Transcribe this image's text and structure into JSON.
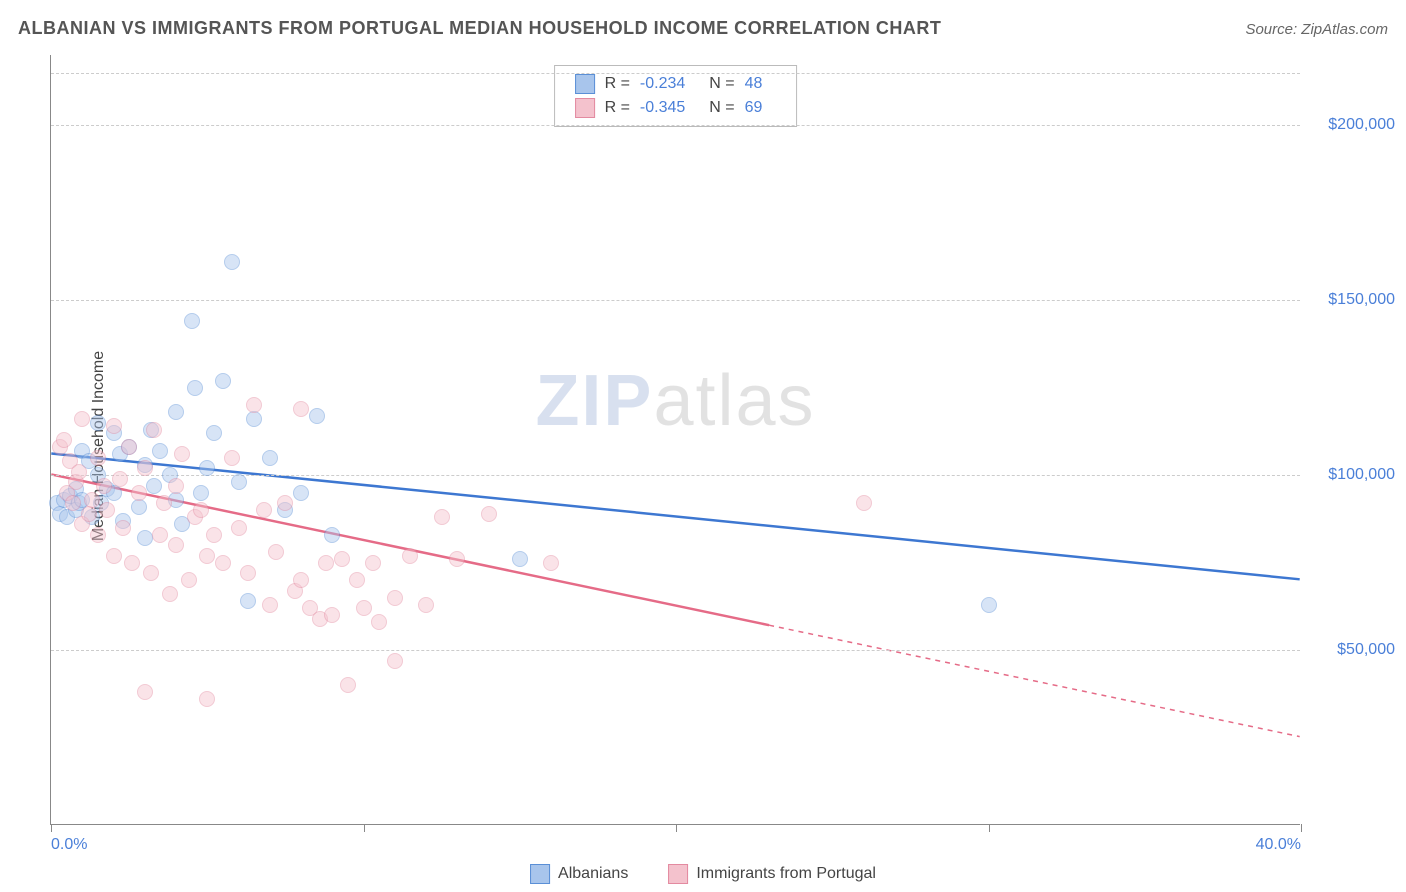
{
  "title": "ALBANIAN VS IMMIGRANTS FROM PORTUGAL MEDIAN HOUSEHOLD INCOME CORRELATION CHART",
  "source_label": "Source: ZipAtlas.com",
  "y_axis_label": "Median Household Income",
  "watermark_a": "ZIP",
  "watermark_b": "atlas",
  "chart": {
    "type": "scatter",
    "xlim": [
      0,
      40
    ],
    "ylim": [
      0,
      220000
    ],
    "x_ticks_pct": [
      0,
      10,
      20,
      30,
      40
    ],
    "x_tick_labels": {
      "0": "0.0%",
      "40": "40.0%"
    },
    "y_gridlines": [
      50000,
      100000,
      150000,
      200000,
      215000
    ],
    "y_tick_labels": {
      "50000": "$50,000",
      "100000": "$100,000",
      "150000": "$150,000",
      "200000": "$200,000"
    },
    "background_color": "#ffffff",
    "grid_color": "#cccccc",
    "axis_color": "#888888",
    "label_color": "#4a7fd8",
    "point_radius": 8,
    "point_opacity": 0.45
  },
  "series": [
    {
      "name": "Albanians",
      "fill": "#a8c5ec",
      "stroke": "#5a8fd6",
      "line_color": "#3d77d1",
      "r": "-0.234",
      "n": "48",
      "trend": {
        "x1": 0,
        "y1": 106000,
        "x2": 40,
        "y2": 70000,
        "dash_after_x": 40
      },
      "points": [
        [
          0.2,
          92000
        ],
        [
          0.3,
          89000
        ],
        [
          0.4,
          93000
        ],
        [
          0.5,
          88000
        ],
        [
          0.6,
          94000
        ],
        [
          0.8,
          96000
        ],
        [
          0.8,
          90000
        ],
        [
          0.9,
          92000
        ],
        [
          1.0,
          107000
        ],
        [
          1.0,
          93000
        ],
        [
          1.2,
          104000
        ],
        [
          1.3,
          88000
        ],
        [
          1.5,
          100000
        ],
        [
          1.5,
          115000
        ],
        [
          1.6,
          92000
        ],
        [
          1.8,
          96000
        ],
        [
          2.0,
          112000
        ],
        [
          2.0,
          95000
        ],
        [
          2.2,
          106000
        ],
        [
          2.3,
          87000
        ],
        [
          2.5,
          108000
        ],
        [
          2.8,
          91000
        ],
        [
          3.0,
          103000
        ],
        [
          3.0,
          82000
        ],
        [
          3.2,
          113000
        ],
        [
          3.3,
          97000
        ],
        [
          3.5,
          107000
        ],
        [
          3.8,
          100000
        ],
        [
          4.0,
          118000
        ],
        [
          4.0,
          93000
        ],
        [
          4.2,
          86000
        ],
        [
          4.5,
          144000
        ],
        [
          4.6,
          125000
        ],
        [
          4.8,
          95000
        ],
        [
          5.0,
          102000
        ],
        [
          5.2,
          112000
        ],
        [
          5.5,
          127000
        ],
        [
          5.8,
          161000
        ],
        [
          6.0,
          98000
        ],
        [
          6.3,
          64000
        ],
        [
          6.5,
          116000
        ],
        [
          7.0,
          105000
        ],
        [
          7.5,
          90000
        ],
        [
          8.0,
          95000
        ],
        [
          8.5,
          117000
        ],
        [
          9.0,
          83000
        ],
        [
          15.0,
          76000
        ],
        [
          30.0,
          63000
        ]
      ]
    },
    {
      "name": "Immigrants from Portugal",
      "fill": "#f4c2cd",
      "stroke": "#e38aa0",
      "line_color": "#e56b87",
      "r": "-0.345",
      "n": "69",
      "trend": {
        "x1": 0,
        "y1": 100000,
        "x2": 40,
        "y2": 25000,
        "dash_after_x": 23
      },
      "points": [
        [
          0.3,
          108000
        ],
        [
          0.4,
          110000
        ],
        [
          0.5,
          95000
        ],
        [
          0.6,
          104000
        ],
        [
          0.7,
          92000
        ],
        [
          0.8,
          98000
        ],
        [
          0.9,
          101000
        ],
        [
          1.0,
          86000
        ],
        [
          1.0,
          116000
        ],
        [
          1.2,
          89000
        ],
        [
          1.3,
          93000
        ],
        [
          1.5,
          83000
        ],
        [
          1.5,
          105000
        ],
        [
          1.7,
          97000
        ],
        [
          1.8,
          90000
        ],
        [
          2.0,
          114000
        ],
        [
          2.0,
          77000
        ],
        [
          2.2,
          99000
        ],
        [
          2.3,
          85000
        ],
        [
          2.5,
          108000
        ],
        [
          2.6,
          75000
        ],
        [
          2.8,
          95000
        ],
        [
          3.0,
          38000
        ],
        [
          3.0,
          102000
        ],
        [
          3.2,
          72000
        ],
        [
          3.3,
          113000
        ],
        [
          3.5,
          83000
        ],
        [
          3.6,
          92000
        ],
        [
          3.8,
          66000
        ],
        [
          4.0,
          97000
        ],
        [
          4.0,
          80000
        ],
        [
          4.2,
          106000
        ],
        [
          4.4,
          70000
        ],
        [
          4.6,
          88000
        ],
        [
          4.8,
          90000
        ],
        [
          5.0,
          77000
        ],
        [
          5.0,
          36000
        ],
        [
          5.2,
          83000
        ],
        [
          5.5,
          75000
        ],
        [
          5.8,
          105000
        ],
        [
          6.0,
          85000
        ],
        [
          6.3,
          72000
        ],
        [
          6.5,
          120000
        ],
        [
          6.8,
          90000
        ],
        [
          7.0,
          63000
        ],
        [
          7.2,
          78000
        ],
        [
          7.5,
          92000
        ],
        [
          7.8,
          67000
        ],
        [
          8.0,
          70000
        ],
        [
          8.0,
          119000
        ],
        [
          8.3,
          62000
        ],
        [
          8.6,
          59000
        ],
        [
          8.8,
          75000
        ],
        [
          9.0,
          60000
        ],
        [
          9.3,
          76000
        ],
        [
          9.5,
          40000
        ],
        [
          9.8,
          70000
        ],
        [
          10.0,
          62000
        ],
        [
          10.3,
          75000
        ],
        [
          10.5,
          58000
        ],
        [
          11.0,
          65000
        ],
        [
          11.0,
          47000
        ],
        [
          11.5,
          77000
        ],
        [
          12.0,
          63000
        ],
        [
          12.5,
          88000
        ],
        [
          13.0,
          76000
        ],
        [
          14.0,
          89000
        ],
        [
          16.0,
          75000
        ],
        [
          26.0,
          92000
        ]
      ]
    }
  ],
  "bottom_legend": [
    "Albanians",
    "Immigrants from Portugal"
  ]
}
